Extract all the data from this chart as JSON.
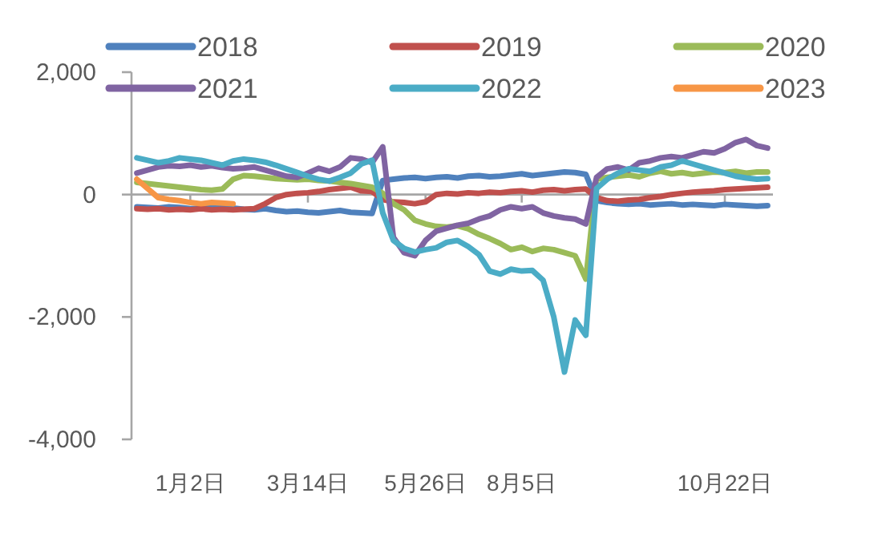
{
  "chart_data": {
    "type": "line",
    "categories": [
      null,
      null,
      null,
      null,
      null,
      "1月2日",
      null,
      null,
      null,
      null,
      null,
      null,
      null,
      null,
      null,
      null,
      "3月14日",
      null,
      null,
      null,
      null,
      null,
      null,
      null,
      null,
      null,
      null,
      "5月26日",
      null,
      null,
      null,
      null,
      null,
      null,
      null,
      null,
      "8月5日",
      null,
      null,
      null,
      null,
      null,
      null,
      null,
      null,
      null,
      null,
      null,
      null,
      null,
      null,
      null,
      null,
      null,
      null,
      "10月22日",
      null,
      null,
      null,
      null
    ],
    "series": [
      {
        "name": "2018",
        "color": "#4f81bd",
        "values": [
          -200,
          -210,
          -220,
          -200,
          -210,
          -230,
          -220,
          -210,
          -200,
          -220,
          -240,
          -250,
          -230,
          -260,
          -280,
          -270,
          -290,
          -300,
          -280,
          -260,
          -290,
          -300,
          -310,
          230,
          250,
          270,
          280,
          260,
          280,
          290,
          270,
          300,
          310,
          290,
          300,
          320,
          340,
          310,
          330,
          350,
          370,
          360,
          330,
          -100,
          -130,
          -150,
          -160,
          -150,
          -170,
          -160,
          -150,
          -170,
          -160,
          -170,
          -180,
          -160,
          -170,
          -180,
          -190,
          -180
        ]
      },
      {
        "name": "2019",
        "color": "#c0504d",
        "values": [
          -230,
          -240,
          -230,
          -250,
          -240,
          -250,
          -230,
          -250,
          -240,
          -250,
          -240,
          -230,
          -150,
          -50,
          0,
          20,
          30,
          50,
          80,
          100,
          120,
          60,
          50,
          -80,
          -120,
          -130,
          -150,
          -120,
          0,
          20,
          10,
          30,
          20,
          40,
          30,
          50,
          60,
          40,
          70,
          80,
          60,
          80,
          90,
          -50,
          -100,
          -110,
          -90,
          -80,
          -50,
          -30,
          0,
          20,
          40,
          50,
          60,
          80,
          90,
          100,
          110,
          120
        ]
      },
      {
        "name": "2020",
        "color": "#9bbb59",
        "values": [
          200,
          180,
          160,
          140,
          120,
          100,
          80,
          70,
          90,
          250,
          310,
          300,
          280,
          260,
          250,
          240,
          250,
          230,
          220,
          200,
          180,
          150,
          120,
          20,
          -150,
          -250,
          -420,
          -480,
          -520,
          -530,
          -510,
          -560,
          -650,
          -720,
          -800,
          -900,
          -860,
          -930,
          -880,
          -900,
          -950,
          -1000,
          -1380,
          250,
          280,
          300,
          320,
          290,
          350,
          380,
          340,
          360,
          330,
          350,
          370,
          360,
          380,
          350,
          370,
          370
        ]
      },
      {
        "name": "2021",
        "color": "#8064a2",
        "values": [
          350,
          400,
          450,
          470,
          460,
          480,
          450,
          470,
          440,
          420,
          430,
          450,
          400,
          350,
          300,
          280,
          350,
          430,
          380,
          450,
          600,
          580,
          520,
          780,
          -700,
          -950,
          -1000,
          -750,
          -600,
          -550,
          -500,
          -470,
          -400,
          -350,
          -250,
          -200,
          -230,
          -200,
          -300,
          -350,
          -380,
          -400,
          -480,
          280,
          420,
          450,
          400,
          520,
          550,
          600,
          620,
          600,
          650,
          700,
          680,
          750,
          850,
          900,
          800,
          760
        ]
      },
      {
        "name": "2022",
        "color": "#4bacc6",
        "values": [
          600,
          560,
          520,
          550,
          600,
          580,
          560,
          520,
          480,
          550,
          580,
          560,
          530,
          480,
          420,
          360,
          300,
          250,
          220,
          280,
          350,
          500,
          560,
          -300,
          -750,
          -880,
          -940,
          -900,
          -870,
          -780,
          -750,
          -850,
          -980,
          -1250,
          -1300,
          -1220,
          -1250,
          -1240,
          -1400,
          -2000,
          -2900,
          -2050,
          -2300,
          100,
          250,
          350,
          420,
          400,
          380,
          450,
          480,
          550,
          500,
          450,
          400,
          350,
          300,
          270,
          250,
          260
        ]
      },
      {
        "name": "2023",
        "color": "#f79646",
        "values": [
          250,
          100,
          -50,
          -80,
          -100,
          -130,
          -150,
          -130,
          -140,
          -150,
          null,
          null,
          null,
          null,
          null,
          null,
          null,
          null,
          null,
          null,
          null,
          null,
          null,
          null,
          null,
          null,
          null,
          null,
          null,
          null,
          null,
          null,
          null,
          null,
          null,
          null,
          null,
          null,
          null,
          null,
          null,
          null,
          null,
          null,
          null,
          null,
          null,
          null,
          null,
          null,
          null,
          null,
          null,
          null,
          null,
          null,
          null,
          null,
          null,
          null
        ]
      }
    ],
    "ylim": [
      -4000,
      2000
    ],
    "yticks": [
      {
        "value": -4000,
        "label": "-4,000"
      },
      {
        "value": -2000,
        "label": "-2,000"
      },
      {
        "value": 0,
        "label": "0"
      },
      {
        "value": 2000,
        "label": "2,000"
      }
    ],
    "legend": "top",
    "marker": "none",
    "line_style": "solid"
  }
}
